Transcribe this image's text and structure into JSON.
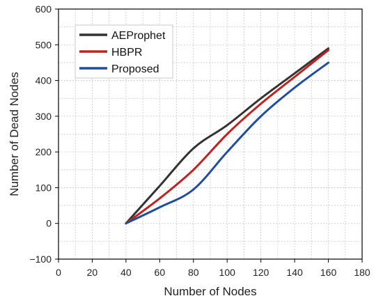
{
  "chart_data": {
    "type": "line",
    "xlabel": "Number of Nodes",
    "ylabel": "Number of Dead Nodes",
    "xlim": [
      0,
      180
    ],
    "ylim": [
      -100,
      600
    ],
    "xticks": [
      0,
      20,
      40,
      60,
      80,
      100,
      120,
      140,
      160,
      180
    ],
    "yticks": [
      -100,
      0,
      100,
      200,
      300,
      400,
      500,
      600
    ],
    "grid": true,
    "legend": "top-left",
    "series": [
      {
        "name": "AEProphet",
        "color": "#333333",
        "x": [
          40,
          60,
          80,
          100,
          120,
          140,
          160
        ],
        "y": [
          0,
          105,
          210,
          275,
          350,
          420,
          490
        ]
      },
      {
        "name": "HBPR",
        "color": "#c0221f",
        "x": [
          40,
          60,
          80,
          100,
          120,
          140,
          160
        ],
        "y": [
          0,
          70,
          150,
          250,
          335,
          410,
          485
        ]
      },
      {
        "name": "Proposed",
        "color": "#1f4e9c",
        "x": [
          40,
          60,
          80,
          100,
          120,
          140,
          160
        ],
        "y": [
          0,
          45,
          95,
          200,
          300,
          380,
          450
        ]
      }
    ]
  }
}
